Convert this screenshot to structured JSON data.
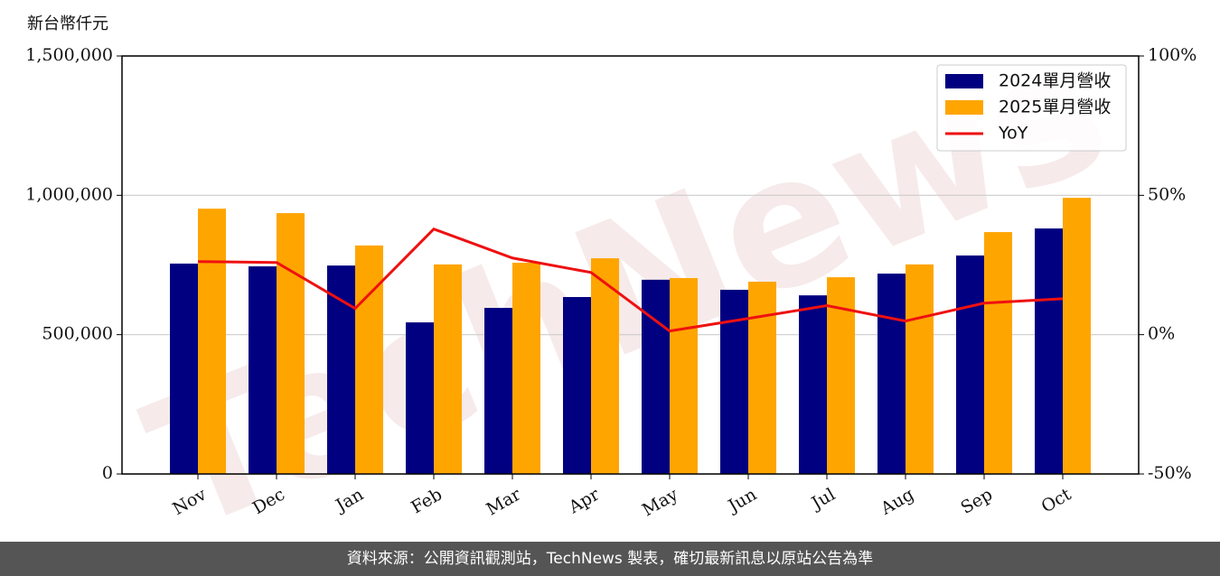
{
  "chart_data": {
    "type": "bar-line",
    "y_axis_label": "新台幣仟元",
    "watermark": "TechNews",
    "footer": "資料來源：公開資訊觀測站，TechNews 製表，確切最新訊息以原站公告為準",
    "categories": [
      "Nov",
      "Dec",
      "Jan",
      "Feb",
      "Mar",
      "Apr",
      "May",
      "Jun",
      "Jul",
      "Aug",
      "Sep",
      "Oct"
    ],
    "series": [
      {
        "name": "2024單月營收",
        "type": "bar",
        "color": "#000080",
        "values": [
          755000,
          745000,
          748000,
          544000,
          596000,
          635000,
          697000,
          661000,
          641000,
          719000,
          784000,
          881000
        ]
      },
      {
        "name": "2025單月營收",
        "type": "bar",
        "color": "#ffa500",
        "values": [
          952000,
          936000,
          820000,
          752000,
          758000,
          774000,
          703000,
          690000,
          706000,
          752000,
          868000,
          991000
        ]
      },
      {
        "name": "YoY",
        "type": "line",
        "axis": "y2",
        "color": "#ee1111",
        "values": [
          26.2,
          25.9,
          9.4,
          37.9,
          27.5,
          22.3,
          1.3,
          5.8,
          10.4,
          4.9,
          11.3,
          12.9
        ]
      }
    ],
    "ylim": [
      0,
      1500000
    ],
    "yticks": [
      0,
      {
        "value": 500000,
        "label": "500,000"
      },
      {
        "value": 1000000,
        "label": "1,000,000"
      },
      {
        "value": 1500000,
        "label": "1,500,000"
      }
    ],
    "y2lim": [
      -50,
      100
    ],
    "y2ticks": [
      {
        "value": -50,
        "label": "-50%"
      },
      {
        "value": 0,
        "label": "0%"
      },
      {
        "value": 50,
        "label": "50%"
      },
      {
        "value": 100,
        "label": "100%"
      }
    ],
    "grid": true,
    "legend": "upper right"
  }
}
